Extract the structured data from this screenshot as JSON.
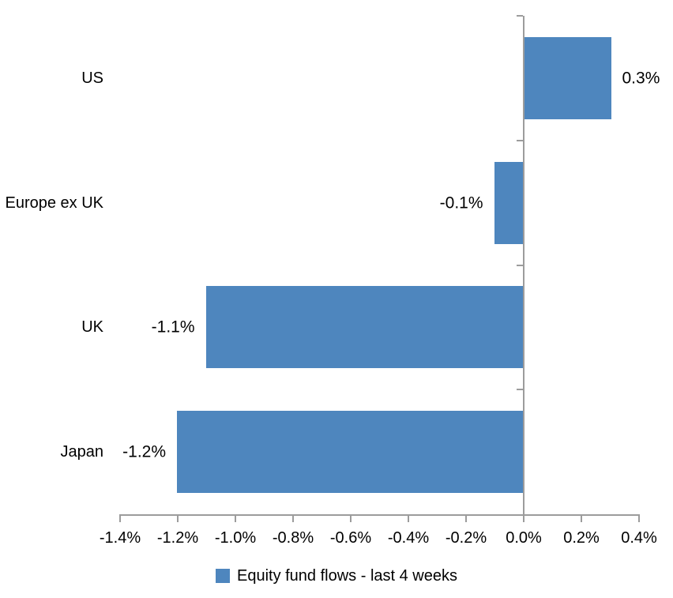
{
  "chart_data": {
    "type": "bar",
    "orientation": "horizontal",
    "title": "",
    "xlabel": "",
    "ylabel": "",
    "categories": [
      "US",
      "Europe ex UK",
      "UK",
      "Japan"
    ],
    "series": [
      {
        "name": "Equity fund flows - last 4 weeks",
        "values": [
          0.3,
          -0.1,
          -1.1,
          -1.2
        ],
        "data_labels": [
          "0.3%",
          "-0.1%",
          "-1.1%",
          "-1.2%"
        ]
      }
    ],
    "x_axis": {
      "min": -1.4,
      "max": 0.4,
      "step": 0.2,
      "tick_labels": [
        "-1.4%",
        "-1.2%",
        "-1.0%",
        "-0.8%",
        "-0.6%",
        "-0.4%",
        "-0.2%",
        "0.0%",
        "0.2%",
        "0.4%"
      ]
    },
    "grid": false,
    "legend": {
      "position": "bottom",
      "entries": [
        "Equity fund flows - last 4 weeks"
      ]
    },
    "colors": {
      "bar": "#4E86BE",
      "axis": "#9C9C9C",
      "text": "#000000",
      "background": "#FFFFFF"
    }
  }
}
